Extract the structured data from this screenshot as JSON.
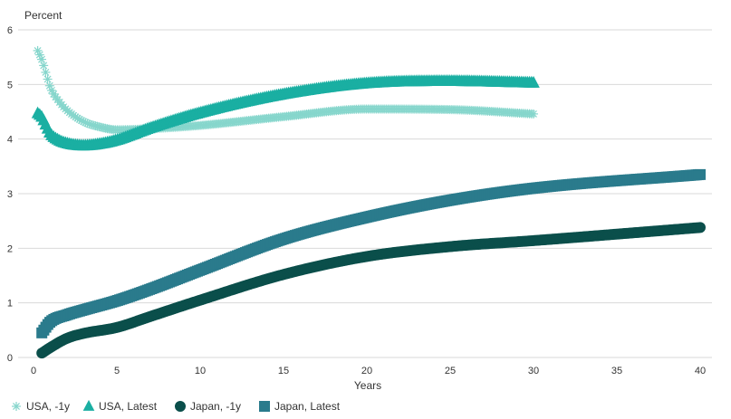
{
  "chart_data": {
    "type": "line",
    "ylabel": "Percent",
    "xlabel": "Years",
    "xlim": [
      0,
      40
    ],
    "ylim": [
      0,
      6
    ],
    "x_ticks": [
      "0",
      "5",
      "10",
      "15",
      "20",
      "25",
      "30",
      "35",
      "40"
    ],
    "y_ticks": [
      "0",
      "1",
      "2",
      "3",
      "4",
      "5",
      "6"
    ],
    "grid": true,
    "legend_position": "bottom-left",
    "series": [
      {
        "name": "USA, -1y",
        "color": "#86d6cc",
        "marker": "asterisk",
        "x": [
          0.25,
          0.5,
          0.75,
          1,
          1.5,
          2,
          3,
          4,
          5,
          7,
          10,
          15,
          20,
          25,
          30
        ],
        "y": [
          5.62,
          5.45,
          5.2,
          4.95,
          4.7,
          4.53,
          4.32,
          4.22,
          4.17,
          4.19,
          4.25,
          4.41,
          4.55,
          4.54,
          4.46
        ]
      },
      {
        "name": "USA, Latest",
        "color": "#1aafa2",
        "marker": "triangle",
        "x": [
          0.25,
          0.5,
          0.75,
          1,
          1.5,
          2,
          3,
          4,
          5,
          7,
          10,
          15,
          20,
          25,
          30
        ],
        "y": [
          4.47,
          4.4,
          4.25,
          4.1,
          3.98,
          3.92,
          3.88,
          3.91,
          3.98,
          4.2,
          4.48,
          4.82,
          5.02,
          5.06,
          5.03
        ]
      },
      {
        "name": "Japan, -1y",
        "color": "#0b4f4b",
        "marker": "circle",
        "x": [
          0.5,
          1,
          2,
          3,
          5,
          7,
          10,
          15,
          20,
          25,
          30,
          40
        ],
        "y": [
          0.08,
          0.18,
          0.35,
          0.44,
          0.55,
          0.75,
          1.05,
          1.52,
          1.85,
          2.03,
          2.14,
          2.38
        ]
      },
      {
        "name": "Japan, Latest",
        "color": "#2a7b8c",
        "marker": "square",
        "x": [
          0.5,
          1,
          2,
          3,
          5,
          7,
          10,
          15,
          20,
          25,
          30,
          40
        ],
        "y": [
          0.45,
          0.65,
          0.78,
          0.87,
          1.04,
          1.25,
          1.6,
          2.17,
          2.57,
          2.88,
          3.1,
          3.35
        ]
      }
    ]
  }
}
